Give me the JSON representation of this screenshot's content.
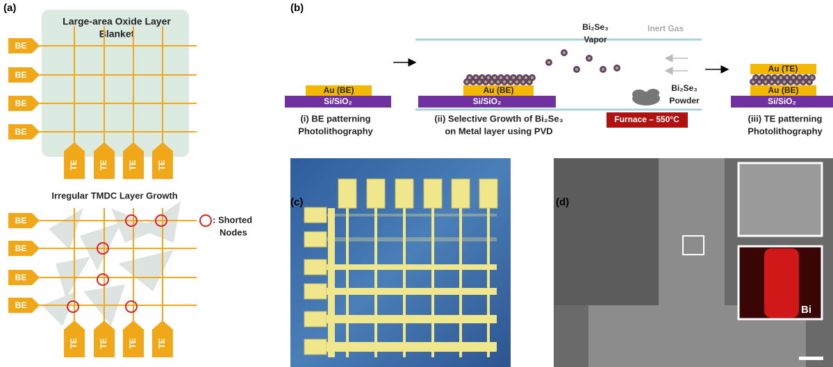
{
  "panel_labels": [
    "(a)",
    "(b)",
    "(c)",
    "(d)"
  ],
  "panel_a": {
    "top_title": [
      "Large-area Oxide Layer",
      "Blanket"
    ],
    "bottom_title": "Irregular TMDC Layer Growth",
    "be_label": "BE",
    "te_label": "TE",
    "legend": [
      ": Shorted",
      "Nodes"
    ]
  },
  "panel_b": {
    "au_be": "Au (BE)",
    "au_te": "Au (TE)",
    "substrate": "Si/SiO₂",
    "vapor": [
      "Bi₂Se₃",
      "Vapor"
    ],
    "powder": [
      "Bi₂Se₃",
      "Powder"
    ],
    "gas": "Inert Gas",
    "furnace": "Furnace – 550°C",
    "steps": [
      {
        "caption": [
          "(i) BE patterning",
          "Photolithography"
        ]
      },
      {
        "caption": [
          "(ii) Selective Growth of Bi₂Se₃",
          "on Metal layer using PVD"
        ]
      },
      {
        "caption": [
          "(iii) TE patterning",
          "Photolithography"
        ]
      }
    ]
  },
  "panel_d": {
    "inset_label": "Bi"
  }
}
